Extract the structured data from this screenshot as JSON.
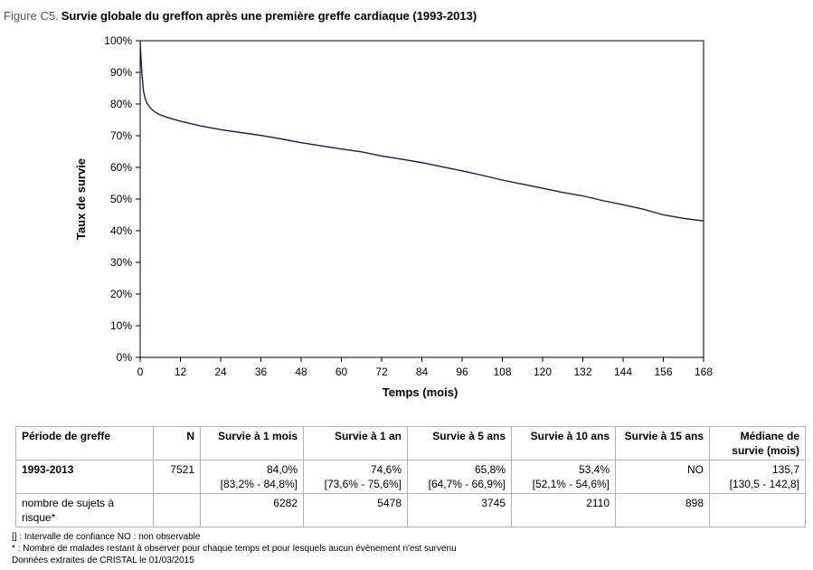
{
  "figure": {
    "label": "Figure C5.",
    "title": "Survie globale du greffon après une première greffe cardiaque (1993-2013)"
  },
  "chart_data": {
    "type": "line",
    "xlabel": "Temps (mois)",
    "ylabel": "Taux de survie",
    "xlim": [
      0,
      168
    ],
    "ylim": [
      0,
      100
    ],
    "x_ticks": [
      0,
      12,
      24,
      36,
      48,
      60,
      72,
      84,
      96,
      108,
      120,
      132,
      144,
      156,
      168
    ],
    "y_ticks": [
      "0%",
      "10%",
      "20%",
      "30%",
      "40%",
      "50%",
      "60%",
      "70%",
      "80%",
      "90%",
      "100%"
    ],
    "grid": false,
    "legend": "none",
    "line_color": "#1f1a4d",
    "series": [
      {
        "x": [
          0,
          0.25,
          0.5,
          1,
          1.5,
          2,
          3,
          4,
          5,
          6,
          8,
          10,
          12,
          18,
          24,
          30,
          36,
          42,
          48,
          54,
          60,
          66,
          72,
          78,
          84,
          90,
          96,
          102,
          108,
          114,
          120,
          126,
          132,
          138,
          144,
          150,
          156,
          162,
          168
        ],
        "values": [
          100,
          94.5,
          90,
          84.0,
          81.8,
          80.3,
          78.8,
          77.8,
          77.1,
          76.6,
          75.8,
          75.2,
          74.6,
          73.1,
          71.9,
          71.0,
          70.1,
          69.0,
          67.8,
          66.8,
          65.8,
          64.9,
          63.6,
          62.6,
          61.5,
          60.2,
          58.9,
          57.5,
          56.0,
          54.7,
          53.4,
          52.1,
          51.0,
          49.5,
          48.2,
          46.8,
          45.0,
          43.9,
          43.1
        ]
      }
    ]
  },
  "table": {
    "headers": [
      "Période de greffe",
      "N",
      "Survie à 1 mois",
      "Survie à 1 an",
      "Survie à 5 ans",
      "Survie à 10 ans",
      "Survie à 15 ans",
      "Médiane de survie (mois)"
    ],
    "rows": [
      {
        "label": "1993-2013",
        "cells": [
          "7521",
          "84,0%\n[83,2% - 84,8%]",
          "74,6%\n[73,6% - 75,6%]",
          "65,8%\n[64,7% - 66,9%]",
          "53,4%\n[52,1% - 54,6%]",
          "NO",
          "135,7\n[130,5 - 142,8]"
        ]
      },
      {
        "label": "nombre de sujets à risque*",
        "cells": [
          "",
          "6282",
          "5478",
          "3745",
          "2110",
          "898",
          ""
        ]
      }
    ]
  },
  "notes": [
    "[] : Intervalle de confiance NO : non observable",
    "* : Nombre de malades restant à observer pour chaque temps et pour lesquels aucun évènement n'est survenu",
    "Données extraites de CRISTAL le 01/03/2015"
  ]
}
